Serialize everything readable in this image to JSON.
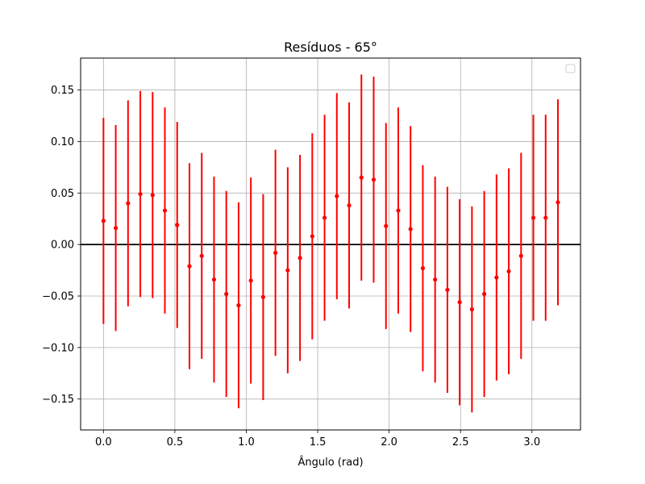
{
  "chart_data": {
    "type": "scatter",
    "title": "Resíduos - 65°",
    "xlabel": "Ângulo (rad)",
    "ylabel": "",
    "xlim": [
      -0.16,
      3.34
    ],
    "ylim": [
      -0.18,
      0.181
    ],
    "x_ticks": [
      0.0,
      0.5,
      1.0,
      1.5,
      2.0,
      2.5,
      3.0
    ],
    "x_tick_labels": [
      "0.0",
      "0.5",
      "1.0",
      "1.5",
      "2.0",
      "2.5",
      "3.0"
    ],
    "y_ticks": [
      -0.15,
      -0.1,
      -0.05,
      0.0,
      0.05,
      0.1,
      0.15
    ],
    "y_tick_labels": [
      "−0.15",
      "−0.10",
      "−0.05",
      "0.00",
      "0.05",
      "0.10",
      "0.15"
    ],
    "grid": true,
    "legend": "top-right (empty)",
    "reference_line_y": 0,
    "error": 0.1,
    "colors": {
      "points": "#ff0000",
      "errorbars": "#ff0000",
      "zero_line": "#000000",
      "grid": "#b0b0b0"
    },
    "series": [
      {
        "x": [
          0.0,
          0.086,
          0.172,
          0.258,
          0.344,
          0.43,
          0.516,
          0.602,
          0.688,
          0.774,
          0.86,
          0.946,
          1.032,
          1.118,
          1.204,
          1.29,
          1.376,
          1.462,
          1.548,
          1.634,
          1.72,
          1.806,
          1.892,
          1.978,
          2.064,
          2.15,
          2.236,
          2.322,
          2.408,
          2.494,
          2.58,
          2.666,
          2.752,
          2.838,
          2.924,
          3.01,
          3.096,
          3.182
        ],
        "y": [
          0.023,
          0.016,
          0.04,
          0.049,
          0.048,
          0.033,
          0.019,
          -0.021,
          -0.011,
          -0.034,
          -0.048,
          -0.059,
          -0.035,
          -0.051,
          -0.008,
          -0.025,
          -0.013,
          0.008,
          0.026,
          0.047,
          0.038,
          0.065,
          0.063,
          0.018,
          0.033,
          0.015,
          -0.023,
          -0.034,
          -0.044,
          -0.056,
          -0.063,
          -0.048,
          -0.032,
          -0.026,
          -0.011,
          0.026,
          0.026,
          0.041
        ]
      }
    ]
  }
}
